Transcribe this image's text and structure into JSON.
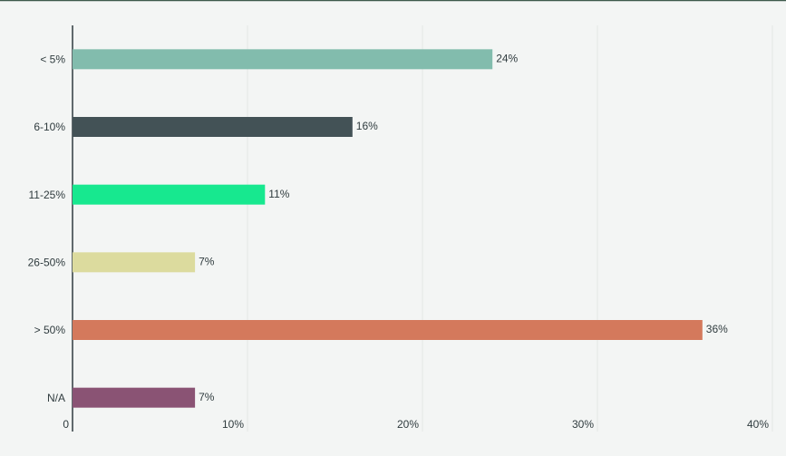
{
  "chart_data": {
    "type": "hbar",
    "categories": [
      "< 5%",
      "6-10%",
      "11-25%",
      "26-50%",
      "> 50%",
      "N/A"
    ],
    "values": [
      24,
      16,
      11,
      7,
      36,
      7
    ],
    "value_labels": [
      "24%",
      "16%",
      "11%",
      "7%",
      "36%",
      "7%"
    ],
    "colors": [
      "#82bcad",
      "#435256",
      "#17e88f",
      "#dcdb9e",
      "#d4795c",
      "#8a5374"
    ],
    "xlim": [
      0,
      40
    ],
    "xticks": [
      0,
      {
        "value": 10,
        "label": "10%"
      },
      {
        "value": 20,
        "label": "20%"
      },
      {
        "value": 30,
        "label": "30%"
      },
      {
        "value": 40,
        "label": "40%"
      }
    ],
    "grid": true
  }
}
